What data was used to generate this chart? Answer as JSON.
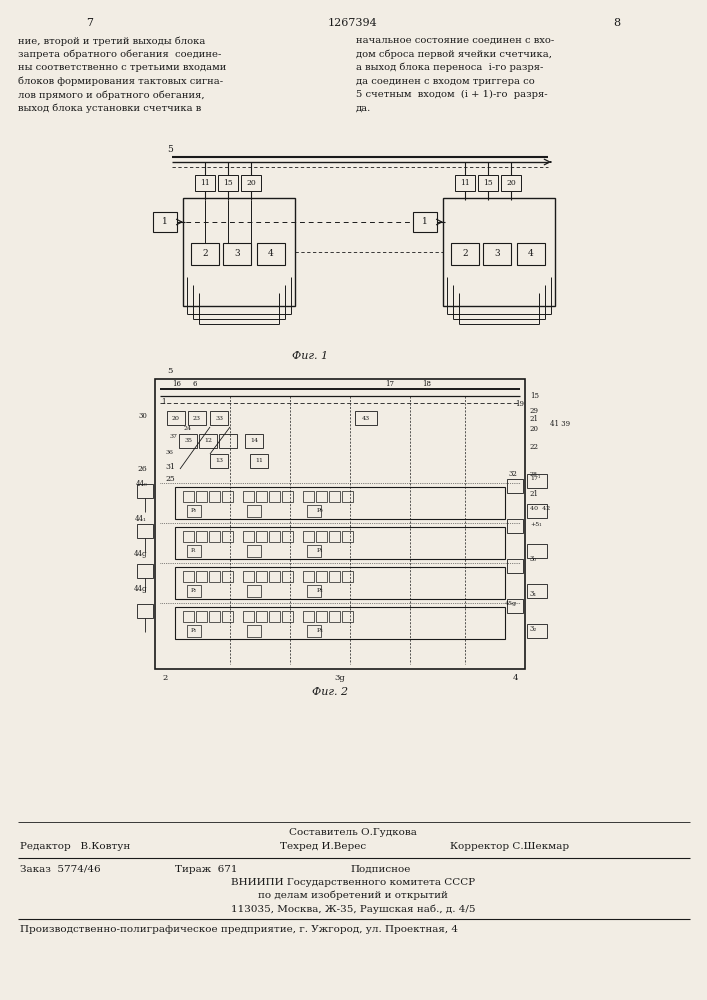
{
  "page_number_left": "7",
  "page_number_center": "1267394",
  "page_number_right": "8",
  "left_text": [
    "ние, второй и третий выходы блока",
    "запрета обратного обегания  соедине-",
    "ны соответственно с третьими входами",
    "блоков формирования тактовых сигна-",
    "лов прямого и обратного обегания,",
    "выход блока установки счетчика в"
  ],
  "right_text": [
    "начальное состояние соединен с вхо-",
    "дом сброса первой ячейки счетчика,",
    "а выход блока переноса  i-го разря-",
    "да соединен с входом триггера со",
    "5 счетным  входом  (i + 1)-го  разря-",
    "да."
  ],
  "fig1_caption": "Фиг. 1",
  "fig2_caption": "Фиг. 2",
  "footer_composer": "Составитель О.Гудкова",
  "footer_editor": "Редактор   В.Ковтун",
  "footer_tech": "Техред И.Верес",
  "footer_corrector": "Корректор С.Шекмар",
  "footer_order": "Заказ  5774/46",
  "footer_edition": "Тираж  671",
  "footer_sign": "Подписное",
  "footer_org": "ВНИИПИ Государственного комитета СССР",
  "footer_subject": "по делам изобретений и открытий",
  "footer_address": "113035, Москва, Ж-35, Раушская наб., д. 4/5",
  "footer_plant": "Производственно-полиграфическое предприятие, г. Ужгород, ул. Проектная, 4",
  "bg_color": "#f2ede4",
  "text_color": "#1a1a1a",
  "line_color": "#1a1a1a"
}
